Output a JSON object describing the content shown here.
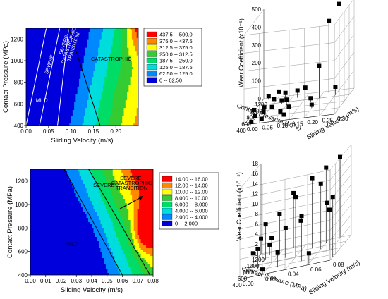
{
  "chart_data": [
    {
      "type": "heatmap",
      "xlabel": "Sliding Velocity (m/s)",
      "ylabel": "Contact Pressure (MPa)",
      "xlim": [
        0.0,
        0.25
      ],
      "ylim": [
        400,
        1300
      ],
      "xticks": [
        "0.00",
        "0.05",
        "0.10",
        "0.15",
        "0.20"
      ],
      "yticks": [
        "400",
        "600",
        "800",
        "1000",
        "1200"
      ],
      "legend": {
        "placement": "right",
        "entries": [
          {
            "label": "437.5  --  500.0",
            "color": "#ff0000"
          },
          {
            "label": "375.0  --  437.5",
            "color": "#ff8800"
          },
          {
            "label": "312.5  --  375.0",
            "color": "#ffff00"
          },
          {
            "label": "250.0  --  312.5",
            "color": "#33cc33"
          },
          {
            "label": "187.5  --  250.0",
            "color": "#00dd66"
          },
          {
            "label": "125.0  --  187.5",
            "color": "#00dddd"
          },
          {
            "label": "62.50  --  125.0",
            "color": "#0088ff"
          },
          {
            "label": "0  --  62.50",
            "color": "#0000dd"
          }
        ]
      },
      "region_labels": [
        "MILD",
        "SEVERE",
        "SEVERE-\nCATASTROPHIC\nTRANSITION",
        "CATASTROPHIC"
      ],
      "boundaries": [
        {
          "points": [
            [
              0.0,
              400
            ],
            [
              0.045,
              1300
            ]
          ]
        },
        {
          "points": [
            [
              0.03,
              400
            ],
            [
              0.075,
              1300
            ]
          ]
        },
        {
          "points": [
            [
              0.07,
              400
            ],
            [
              0.095,
              1300
            ]
          ]
        },
        {
          "points": [
            [
              0.095,
              1300
            ],
            [
              0.165,
              400
            ]
          ]
        }
      ]
    },
    {
      "type": "scatter",
      "subtype": "3d-stem",
      "xlabel": "Contact Pressure (MPa)",
      "ylabel": "Sliding Velocity (m/s)",
      "zlabel": "Wear Coefficient (x10⁻⁵)",
      "xticks": [
        "400",
        "600",
        "800",
        "1000",
        "1200"
      ],
      "yticks": [
        "0.00",
        "0.05",
        "0.10",
        "0.15",
        "0.20",
        "0.25",
        "0.30"
      ],
      "zticks": [
        "0",
        "100",
        "200",
        "300",
        "400",
        "500"
      ],
      "points": [
        {
          "x": 1200,
          "y": 0.25,
          "z": 480
        },
        {
          "x": 1150,
          "y": 0.22,
          "z": 400
        },
        {
          "x": 1000,
          "y": 0.2,
          "z": 180
        },
        {
          "x": 1050,
          "y": 0.15,
          "z": 60
        },
        {
          "x": 1100,
          "y": 0.12,
          "z": 40
        },
        {
          "x": 900,
          "y": 0.1,
          "z": 30
        },
        {
          "x": 950,
          "y": 0.08,
          "z": 20
        },
        {
          "x": 800,
          "y": 0.06,
          "z": 15
        },
        {
          "x": 1000,
          "y": 0.05,
          "z": 25
        },
        {
          "x": 850,
          "y": 0.03,
          "z": 10
        },
        {
          "x": 700,
          "y": 0.04,
          "z": 12
        },
        {
          "x": 600,
          "y": 0.02,
          "z": 8
        },
        {
          "x": 650,
          "y": 0.1,
          "z": 10
        },
        {
          "x": 750,
          "y": 0.12,
          "z": 14
        },
        {
          "x": 500,
          "y": 0.05,
          "z": 5
        },
        {
          "x": 450,
          "y": 0.02,
          "z": 3
        },
        {
          "x": 1200,
          "y": 0.05,
          "z": 30
        },
        {
          "x": 1150,
          "y": 0.02,
          "z": 20
        },
        {
          "x": 1100,
          "y": 0.08,
          "z": 35
        },
        {
          "x": 550,
          "y": 0.12,
          "z": 6
        },
        {
          "x": 900,
          "y": 0.18,
          "z": 22
        },
        {
          "x": 700,
          "y": 0.2,
          "z": 18
        },
        {
          "x": 1050,
          "y": 0.25,
          "z": 45
        },
        {
          "x": 800,
          "y": 0.0,
          "z": 10
        }
      ]
    },
    {
      "type": "heatmap",
      "xlabel": "Sliding Velocity (m/s)",
      "ylabel": "Contact Pressure (MPa)",
      "xlim": [
        0.0,
        0.08
      ],
      "ylim": [
        400,
        1300
      ],
      "xticks": [
        "0.00",
        "0.01",
        "0.02",
        "0.03",
        "0.04",
        "0.05",
        "0.06",
        "0.07",
        "0.08"
      ],
      "yticks": [
        "400",
        "600",
        "800",
        "1000",
        "1200"
      ],
      "legend": {
        "placement": "right",
        "entries": [
          {
            "label": "14.00  --  16.00",
            "color": "#ff0000"
          },
          {
            "label": "12.00  --  14.00",
            "color": "#ff8800"
          },
          {
            "label": "10.00  --  12.00",
            "color": "#ffff00"
          },
          {
            "label": "8.000  --  10.00",
            "color": "#33cc33"
          },
          {
            "label": "6.000  --  8.000",
            "color": "#00dd66"
          },
          {
            "label": "4.000  --  6.000",
            "color": "#00dddd"
          },
          {
            "label": "2.000  --  4.000",
            "color": "#0088ff"
          },
          {
            "label": "0  --  2.000",
            "color": "#0000dd"
          }
        ]
      },
      "region_labels": [
        "MILD",
        "SEVERE",
        "SEVERE-\nCATASTROPHIC\nTRANSITION"
      ],
      "boundaries": [
        {
          "points": [
            [
              0.022,
              1300
            ],
            [
              0.06,
              400
            ]
          ]
        },
        {
          "points": [
            [
              0.038,
              1300
            ],
            [
              0.078,
              400
            ]
          ]
        }
      ]
    },
    {
      "type": "scatter",
      "subtype": "3d-stem",
      "xlabel": "Contact Pressure (MPa)",
      "ylabel": "Sliding Velocity (m/s)",
      "zlabel": "Wear Coefficient (x10⁻⁵)",
      "xticks": [
        "400",
        "600",
        "800",
        "1000",
        "1200"
      ],
      "yticks": [
        "0.00",
        "0.02",
        "0.04",
        "0.06",
        "0.08"
      ],
      "zticks": [
        "0",
        "2",
        "4",
        "6",
        "8",
        "10",
        "12",
        "14",
        "16",
        "18"
      ],
      "points": [
        {
          "x": 1200,
          "y": 0.07,
          "z": 16
        },
        {
          "x": 1100,
          "y": 0.06,
          "z": 15
        },
        {
          "x": 1000,
          "y": 0.05,
          "z": 14
        },
        {
          "x": 900,
          "y": 0.06,
          "z": 13
        },
        {
          "x": 800,
          "y": 0.04,
          "z": 12
        },
        {
          "x": 1150,
          "y": 0.03,
          "z": 11
        },
        {
          "x": 700,
          "y": 0.07,
          "z": 10
        },
        {
          "x": 600,
          "y": 0.05,
          "z": 9
        },
        {
          "x": 1050,
          "y": 0.02,
          "z": 8
        },
        {
          "x": 950,
          "y": 0.01,
          "z": 7
        },
        {
          "x": 850,
          "y": 0.03,
          "z": 6
        },
        {
          "x": 500,
          "y": 0.08,
          "z": 12
        },
        {
          "x": 750,
          "y": 0.02,
          "z": 5
        },
        {
          "x": 650,
          "y": 0.01,
          "z": 4
        },
        {
          "x": 1200,
          "y": 0.0,
          "z": 3
        },
        {
          "x": 1100,
          "y": 0.01,
          "z": 2
        },
        {
          "x": 900,
          "y": 0.0,
          "z": 2
        },
        {
          "x": 550,
          "y": 0.03,
          "z": 3
        },
        {
          "x": 450,
          "y": 0.06,
          "z": 2
        },
        {
          "x": 400,
          "y": 0.02,
          "z": 1
        },
        {
          "x": 1000,
          "y": 0.04,
          "z": 6
        },
        {
          "x": 800,
          "y": 0.07,
          "z": 8
        }
      ]
    }
  ]
}
